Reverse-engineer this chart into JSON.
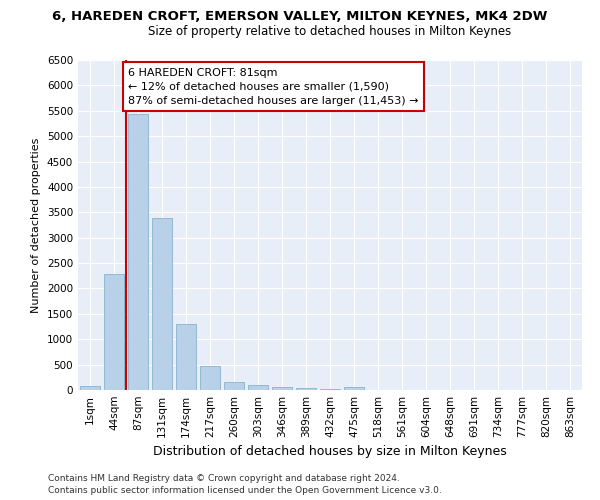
{
  "title": "6, HAREDEN CROFT, EMERSON VALLEY, MILTON KEYNES, MK4 2DW",
  "subtitle": "Size of property relative to detached houses in Milton Keynes",
  "xlabel": "Distribution of detached houses by size in Milton Keynes",
  "ylabel": "Number of detached properties",
  "bar_color": "#b8d0e8",
  "bar_edge_color": "#7aaac8",
  "categories": [
    "1sqm",
    "44sqm",
    "87sqm",
    "131sqm",
    "174sqm",
    "217sqm",
    "260sqm",
    "303sqm",
    "346sqm",
    "389sqm",
    "432sqm",
    "475sqm",
    "518sqm",
    "561sqm",
    "604sqm",
    "648sqm",
    "691sqm",
    "734sqm",
    "777sqm",
    "820sqm",
    "863sqm"
  ],
  "values": [
    70,
    2280,
    5430,
    3380,
    1300,
    480,
    165,
    90,
    55,
    30,
    15,
    55,
    5,
    4,
    3,
    2,
    2,
    1,
    1,
    1,
    1
  ],
  "ylim": [
    0,
    6500
  ],
  "yticks": [
    0,
    500,
    1000,
    1500,
    2000,
    2500,
    3000,
    3500,
    4000,
    4500,
    5000,
    5500,
    6000,
    6500
  ],
  "annotation_text": "6 HAREDEN CROFT: 81sqm\n← 12% of detached houses are smaller (1,590)\n87% of semi-detached houses are larger (11,453) →",
  "annotation_box_color": "white",
  "annotation_border_color": "#cc0000",
  "red_line_color": "#cc0000",
  "footer_line1": "Contains HM Land Registry data © Crown copyright and database right 2024.",
  "footer_line2": "Contains public sector information licensed under the Open Government Licence v3.0.",
  "bg_color": "#ffffff",
  "plot_bg_color": "#e8eef8",
  "grid_color": "#ffffff",
  "title_fontsize": 9.5,
  "subtitle_fontsize": 8.5,
  "ylabel_fontsize": 8,
  "xlabel_fontsize": 9,
  "tick_fontsize": 7.5,
  "annotation_fontsize": 8,
  "footer_fontsize": 6.5
}
